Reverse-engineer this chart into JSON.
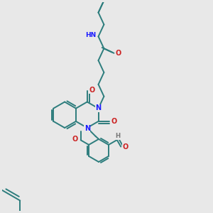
{
  "bg_color": "#e8e8e8",
  "bond_color": "#2d7d7d",
  "N_color": "#1a1aff",
  "O_color": "#cc2222",
  "H_color": "#777777",
  "lw": 1.4,
  "figsize": [
    3.0,
    3.0
  ],
  "dpi": 100,
  "xlim": [
    -1.5,
    8.5
  ],
  "ylim": [
    -5.5,
    5.5
  ]
}
